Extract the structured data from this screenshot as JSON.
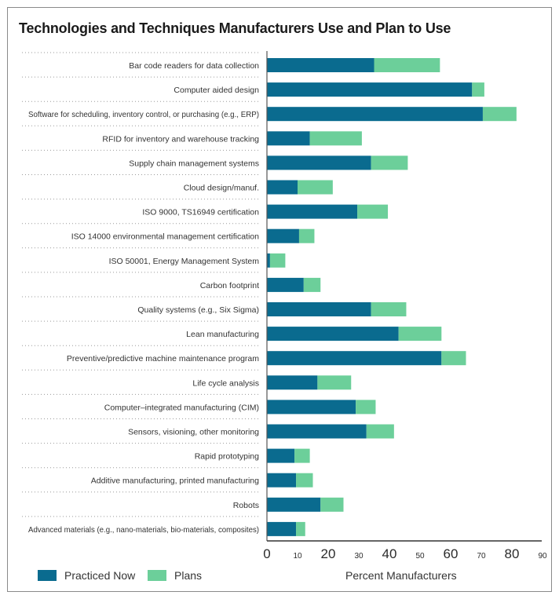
{
  "chart_data": {
    "type": "bar",
    "stacked": true,
    "orientation": "horizontal",
    "title": "Technologies and Techniques Manufacturers Use and Plan to Use",
    "xlabel": "Percent Manufacturers",
    "ylabel": "",
    "xlim": [
      0,
      90
    ],
    "x_ticks": [
      0,
      10,
      20,
      30,
      40,
      50,
      60,
      70,
      80,
      90
    ],
    "x_tick_labels": [
      "0",
      "10",
      "20",
      "30",
      "40",
      "50",
      "60",
      "70",
      "80",
      "90"
    ],
    "x_tick_emphasis": [
      true,
      false,
      true,
      false,
      true,
      false,
      true,
      false,
      true,
      false
    ],
    "categories": [
      "Bar code readers for data collection",
      "Computer aided design",
      "Software for scheduling, inventory control, or purchasing (e.g., ERP)",
      "RFID for inventory and warehouse tracking",
      "Supply chain management systems",
      "Cloud design/manuf.",
      "ISO 9000, TS16949 certification",
      "ISO 14000 environmental management certification",
      "ISO 50001, Energy Management System",
      "Carbon footprint",
      "Quality systems (e.g., Six Sigma)",
      "Lean manufacturing",
      "Preventive/predictive machine maintenance program",
      "Life cycle analysis",
      "Computer–integrated manufacturing (CIM)",
      "Sensors, visioning, other monitoring",
      "Rapid prototyping",
      "Additive manufacturing, printed manufacturing",
      "Robots",
      "Advanced materials (e.g., nano-materials, bio-materials, composites)"
    ],
    "series": [
      {
        "name": "Practiced Now",
        "color": "#0a6b8f",
        "values": [
          35,
          67,
          70.5,
          14,
          34,
          10,
          29.5,
          10.5,
          1,
          12,
          34,
          43,
          57,
          16.5,
          29,
          32.5,
          9,
          9.5,
          17.5,
          9.5
        ]
      },
      {
        "name": "Plans",
        "color": "#6ccf9a",
        "values": [
          21.5,
          4,
          11,
          17,
          12,
          11.5,
          10,
          5,
          5,
          5.5,
          11.5,
          14,
          8,
          11,
          6.5,
          9,
          5,
          5.5,
          7.5,
          3
        ]
      }
    ],
    "legend": [
      "Practiced Now",
      "Plans"
    ],
    "legend_position": "bottom-left",
    "grid": false
  }
}
